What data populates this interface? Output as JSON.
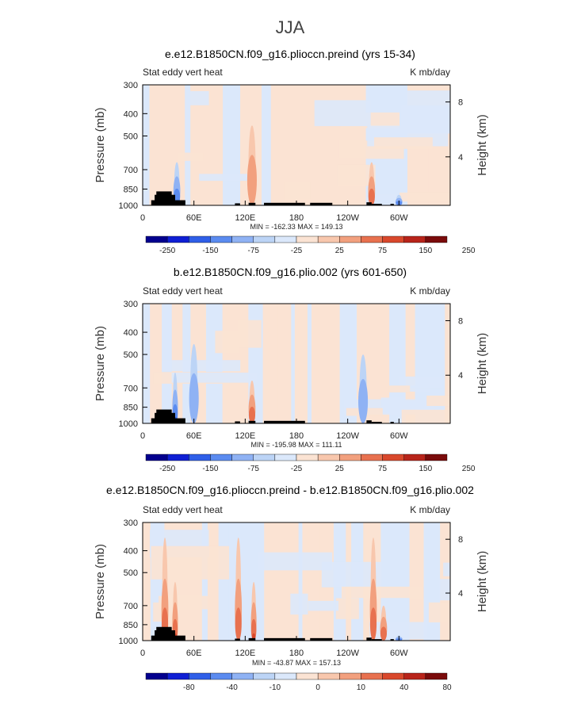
{
  "main_title": "JJA",
  "palette": [
    "#03008e",
    "#0f1fd4",
    "#2f5fe8",
    "#5b8bf0",
    "#8fb2f4",
    "#bcd4f6",
    "#dbe8fb",
    "#fbe3d3",
    "#f8c7ad",
    "#f2a07e",
    "#e8714f",
    "#d9482c",
    "#b8241a",
    "#7a0b0b"
  ],
  "chart_data": [
    {
      "type": "heatmap",
      "title": "e.e12.B1850CN.f09_g16.plioccn.preind (yrs 15-34)",
      "left_label": "Stat eddy vert heat",
      "right_label": "K mb/day",
      "ylabel": "Pressure (mb)",
      "y2label": "Height (km)",
      "yticks": [
        "300",
        "400",
        "500",
        "700",
        "850",
        "1000"
      ],
      "y2ticks": [
        "8",
        "4"
      ],
      "xticks": [
        "0",
        "60E",
        "120E",
        "180",
        "120W",
        "60W"
      ],
      "min_max": "MIN = -162.33   MAX = 149.13",
      "colorbar_labels": [
        "-250",
        "-150",
        "-75",
        "-25",
        "25",
        "75",
        "150",
        "250"
      ],
      "features": [
        {
          "lon": 40,
          "min_p": 650,
          "sign": -1,
          "level": 2
        },
        {
          "lon": 128,
          "min_p": 600,
          "sign": 1,
          "level": 3
        },
        {
          "lon": 128,
          "min_p": 450,
          "sign": 1,
          "level": 1
        },
        {
          "lon": 268,
          "min_p": 650,
          "sign": 1,
          "level": 2
        },
        {
          "lon": 300,
          "min_p": 900,
          "sign": -1,
          "level": 2
        }
      ]
    },
    {
      "type": "heatmap",
      "title": "b.e12.B1850CN.f09_g16.plio.002 (yrs 601-650)",
      "left_label": "Stat eddy vert heat",
      "right_label": "K mb/day",
      "ylabel": "Pressure (mb)",
      "y2label": "Height (km)",
      "yticks": [
        "300",
        "400",
        "500",
        "700",
        "850",
        "1000"
      ],
      "y2ticks": [
        "8",
        "4"
      ],
      "xticks": [
        "0",
        "60E",
        "120E",
        "180",
        "120W",
        "60W"
      ],
      "min_max": "MIN = -195.98   MAX = 111.11",
      "colorbar_labels": [
        "-250",
        "-150",
        "-75",
        "-25",
        "25",
        "75",
        "150",
        "250"
      ],
      "features": [
        {
          "lon": 38,
          "min_p": 600,
          "sign": -1,
          "level": 3
        },
        {
          "lon": 128,
          "min_p": 650,
          "sign": 1,
          "level": 2
        },
        {
          "lon": 258,
          "min_p": 500,
          "sign": -1,
          "level": 1
        },
        {
          "lon": 60,
          "min_p": 450,
          "sign": -1,
          "level": 1
        }
      ]
    },
    {
      "type": "heatmap",
      "title": "e.e12.B1850CN.f09_g16.plioccn.preind - b.e12.B1850CN.f09_g16.plio.002",
      "left_label": "Stat eddy vert heat",
      "right_label": "K mb/day",
      "ylabel": "Pressure (mb)",
      "y2label": "Height (km)",
      "yticks": [
        "300",
        "400",
        "500",
        "700",
        "850",
        "1000"
      ],
      "y2ticks": [
        "8",
        "4"
      ],
      "xticks": [
        "0",
        "60E",
        "120E",
        "180",
        "120W",
        "60W"
      ],
      "min_max": "MIN = -43.87   MAX = 157.13",
      "colorbar_labels": [
        "-80",
        "-40",
        "-10",
        "0",
        "10",
        "40",
        "80"
      ],
      "features": [
        {
          "lon": 38,
          "min_p": 550,
          "sign": 1,
          "level": 3
        },
        {
          "lon": 26,
          "min_p": 350,
          "sign": 1,
          "level": 2
        },
        {
          "lon": 112,
          "min_p": 350,
          "sign": 1,
          "level": 2
        },
        {
          "lon": 130,
          "min_p": 550,
          "sign": 1,
          "level": 3
        },
        {
          "lon": 270,
          "min_p": 350,
          "sign": 1,
          "level": 2
        },
        {
          "lon": 282,
          "min_p": 700,
          "sign": 1,
          "level": 2
        },
        {
          "lon": 300,
          "min_p": 950,
          "sign": -1,
          "level": 2
        }
      ]
    }
  ]
}
